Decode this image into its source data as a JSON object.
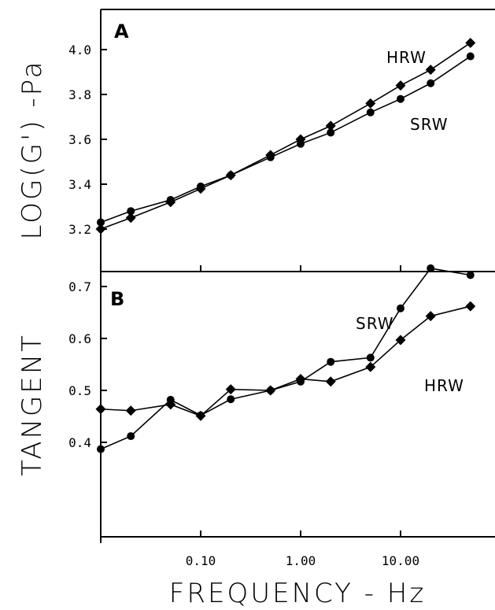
{
  "chart_data": [
    {
      "panel": "A",
      "type": "line",
      "ylabel": "LOG(G') -Pa",
      "xscale": "log",
      "xlim": [
        0.01,
        100
      ],
      "ylim": [
        3.0,
        4.2
      ],
      "yticks": [
        "3.2",
        "3.4",
        "3.6",
        "3.8",
        "4.0"
      ],
      "ytick_values": [
        3.2,
        3.4,
        3.6,
        3.8,
        4.0
      ],
      "x": [
        0.01,
        0.02,
        0.05,
        0.1,
        0.2,
        0.5,
        1.0,
        2.0,
        5.0,
        10.0,
        20.0,
        50.0
      ],
      "series": [
        {
          "name": "HRW",
          "marker": "diamond",
          "values": [
            3.2,
            3.25,
            3.32,
            3.38,
            3.44,
            3.53,
            3.6,
            3.66,
            3.76,
            3.84,
            3.91,
            4.03
          ]
        },
        {
          "name": "SRW",
          "marker": "circle",
          "values": [
            3.23,
            3.28,
            3.33,
            3.39,
            3.44,
            3.52,
            3.58,
            3.63,
            3.72,
            3.78,
            3.85,
            3.97
          ]
        }
      ]
    },
    {
      "panel": "B",
      "type": "line",
      "ylabel": "TANGENT",
      "xlabel": "FREQUENCY - Hz",
      "xscale": "log",
      "xlim": [
        0.01,
        100
      ],
      "ylim": [
        0.33,
        0.78
      ],
      "xticks": [
        "0.10",
        "1.00",
        "10.00"
      ],
      "xtick_values": [
        0.1,
        1.0,
        10.0
      ],
      "yticks": [
        "0.4",
        "0.5",
        "0.6",
        "0.7"
      ],
      "ytick_values": [
        0.4,
        0.5,
        0.6,
        0.7
      ],
      "x": [
        0.01,
        0.02,
        0.05,
        0.1,
        0.2,
        0.5,
        1.0,
        2.0,
        5.0,
        10.0,
        20.0,
        50.0
      ],
      "series": [
        {
          "name": "SRW",
          "marker": "circle",
          "values": [
            0.387,
            0.412,
            0.482,
            0.452,
            0.483,
            0.5,
            0.517,
            0.555,
            0.563,
            0.658,
            0.735,
            0.722
          ]
        },
        {
          "name": "HRW",
          "marker": "diamond",
          "values": [
            0.464,
            0.461,
            0.473,
            0.451,
            0.502,
            0.5,
            0.522,
            0.517,
            0.545,
            0.597,
            0.643,
            0.662
          ]
        }
      ]
    }
  ]
}
